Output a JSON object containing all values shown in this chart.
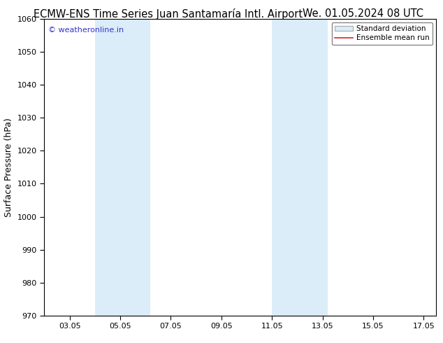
{
  "title_left": "ECMW-ENS Time Series Juan Santamaría Intl. Airport",
  "title_right": "We. 01.05.2024 08 UTC",
  "ylabel": "Surface Pressure (hPa)",
  "ylim": [
    970,
    1060
  ],
  "yticks": [
    970,
    980,
    990,
    1000,
    1010,
    1020,
    1030,
    1040,
    1050,
    1060
  ],
  "xtick_labels": [
    "03.05",
    "05.05",
    "07.05",
    "09.05",
    "11.05",
    "13.05",
    "15.05",
    "17.05"
  ],
  "xtick_positions": [
    1.0,
    3.0,
    5.0,
    7.0,
    9.0,
    11.0,
    13.0,
    15.0
  ],
  "xlim": [
    0.0,
    15.5
  ],
  "shaded_bands": [
    {
      "start": 2.0,
      "end": 4.2,
      "color": "#daedf8"
    },
    {
      "start": 9.0,
      "end": 11.2,
      "color": "#daedf8"
    }
  ],
  "background_color": "#ffffff",
  "watermark_text": "© weatheronline.in",
  "watermark_color": "#3333cc",
  "legend_std_label": "Standard deviation",
  "legend_mean_label": "Ensemble mean run",
  "legend_std_facecolor": "#daedf8",
  "legend_std_edgecolor": "#aaaaaa",
  "legend_mean_color": "#dd2222",
  "title_fontsize": 10.5,
  "ylabel_fontsize": 9,
  "tick_fontsize": 8,
  "watermark_fontsize": 8,
  "legend_fontsize": 7.5
}
